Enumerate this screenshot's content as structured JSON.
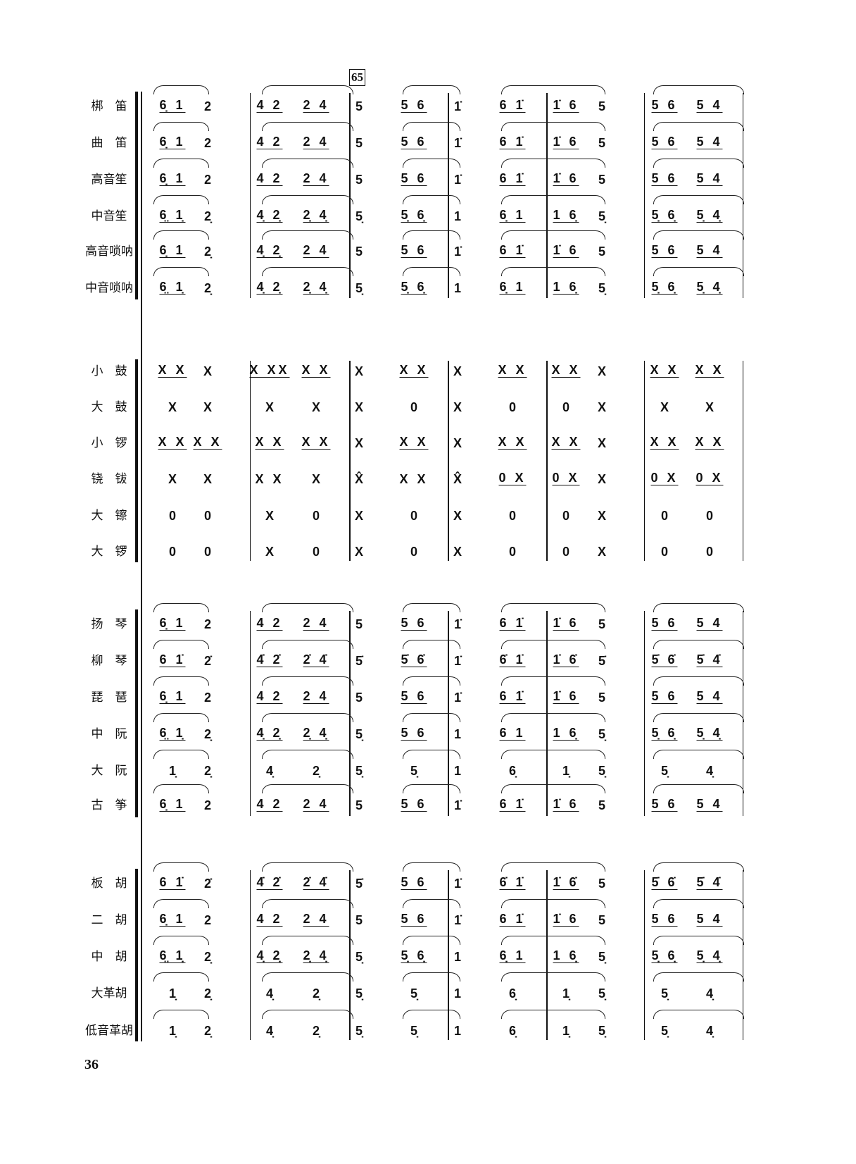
{
  "rehearsal_mark": "65",
  "page_number": "36",
  "groups": [
    {
      "name": "winds",
      "slurs": true,
      "rows": [
        {
          "label": "梆　笛",
          "notes": [
            "6̣ 1",
            "2",
            "4 2",
            "2 4",
            "5",
            "5 6",
            "1̇",
            "6 1̇",
            "1̇ 6",
            "5",
            "5 6",
            "5 4"
          ]
        },
        {
          "label": "曲　笛",
          "notes": [
            "6̣ 1",
            "2",
            "4 2",
            "2 4",
            "5",
            "5 6",
            "1̇",
            "6 1̇",
            "1̇ 6",
            "5",
            "5 6",
            "5 4"
          ]
        },
        {
          "label": "高音笙",
          "notes": [
            "6̣ 1",
            "2",
            "4 2",
            "2 4",
            "5",
            "5 6",
            "1̇",
            "6 1̇",
            "1̇ 6",
            "5",
            "5 6",
            "5 4"
          ]
        },
        {
          "label": "中音笙",
          "notes": [
            "6̤ 1̣",
            "2̣",
            "4̣ 2̣",
            "2̣ 4̣",
            "5̣",
            "5̣ 6̣",
            "1",
            "6̣ 1",
            "1 6̣",
            "5̣",
            "5̣ 6̣",
            "5̣ 4̣"
          ]
        },
        {
          "label": "高音唢呐",
          "notes": [
            "6̣ 1",
            "2̣",
            "4̣ 2̣",
            "2 4",
            "5",
            "5 6",
            "1̇",
            "6 1̇",
            "1̇ 6",
            "5",
            "5 6",
            "5 4"
          ]
        },
        {
          "label": "中音唢呐",
          "notes": [
            "6̤ 1̣",
            "2̣",
            "4̣ 2̣",
            "2̣ 4̣",
            "5̣",
            "5̣ 6̣",
            "1",
            "6̣ 1",
            "1 6̣",
            "5̣",
            "5̣ 6̣",
            "5̣ 4̣"
          ]
        }
      ]
    },
    {
      "name": "percussion",
      "slurs": false,
      "rows": [
        {
          "label": "小　鼓",
          "notes": [
            "X X",
            "X",
            "X XX",
            "X X",
            "X",
            "X X",
            "X",
            "X X",
            "X X",
            "X",
            "X X",
            "X X"
          ]
        },
        {
          "label": "大　鼓",
          "notes": [
            "X",
            "X",
            "X",
            "X",
            "X",
            "0",
            "X",
            "0",
            "0",
            "X",
            "X",
            "X"
          ]
        },
        {
          "label": "小　锣",
          "notes": [
            "X X",
            "X X",
            "X X",
            "X X",
            "X",
            "X X",
            "X",
            "X X",
            "X X",
            "X",
            "X X",
            "X X"
          ]
        },
        {
          "label": "铙　钹",
          "notes": [
            "X",
            "X",
            "X X",
            "X",
            "X̂",
            "X X",
            "X̂",
            "0 X",
            "0 X",
            "X",
            "0 X",
            "0 X"
          ]
        },
        {
          "label": "大　镲",
          "notes": [
            "0",
            "0",
            "X",
            "0",
            "X",
            "0",
            "X",
            "0",
            "0",
            "X",
            "0",
            "0"
          ]
        },
        {
          "label": "大　锣",
          "notes": [
            "0",
            "0",
            "X",
            "0",
            "X",
            "0",
            "X",
            "0",
            "0",
            "X",
            "0",
            "0"
          ]
        }
      ]
    },
    {
      "name": "plucked",
      "slurs": true,
      "rows": [
        {
          "label": "扬　琴",
          "notes": [
            "6̣ 1",
            "2",
            "4 2",
            "2 4",
            "5",
            "5 6",
            "1̇",
            "6 1̇",
            "1̇ 6",
            "5",
            "5 6",
            "5 4"
          ]
        },
        {
          "label": "柳　琴",
          "notes": [
            "6 1̇",
            "2̇",
            "4̇ 2̇",
            "2̇ 4̇",
            "5̇",
            "5̇ 6̇",
            "1̇",
            "6̇ 1̇",
            "1̇ 6̇",
            "5̇",
            "5̇ 6̇",
            "5̇ 4̇"
          ]
        },
        {
          "label": "琵　琶",
          "notes": [
            "6̣ 1",
            "2",
            "4 2",
            "2 4",
            "5",
            "5 6",
            "1̇",
            "6 1̇",
            "1̇ 6",
            "5",
            "5 6",
            "5 4"
          ]
        },
        {
          "label": "中　阮",
          "notes": [
            "6̤ 1̣",
            "2̣",
            "4̣ 2̣",
            "2̣ 4̣",
            "5̣",
            "5 6",
            "1",
            "6 1",
            "1 6̣",
            "5̣",
            "5̣ 6̣",
            "5̣ 4̣"
          ]
        },
        {
          "label": "大　阮",
          "notes": [
            "1̣",
            "2̣",
            "4̣",
            "2̣",
            "5̣",
            "5̣",
            "1",
            "6̣",
            "1̣",
            "5̣",
            "5̣",
            "4̣"
          ]
        },
        {
          "label": "古　筝",
          "notes": [
            "6̣ 1",
            "2",
            "4 2",
            "2 4",
            "5",
            "5 6",
            "1̇",
            "6 1̇",
            "1̇ 6",
            "5",
            "5 6",
            "5 4"
          ]
        }
      ]
    },
    {
      "name": "bowed",
      "slurs": true,
      "rows": [
        {
          "label": "板　胡",
          "notes": [
            "6 1̇",
            "2̇",
            "4̇ 2̇",
            "2̇ 4̇",
            "5̇",
            "5 6",
            "1̇",
            "6̇ 1̇",
            "1̇ 6̇",
            "5",
            "5̇ 6̇",
            "5̇ 4̇"
          ]
        },
        {
          "label": "二　胡",
          "notes": [
            "6̣ 1",
            "2",
            "4 2",
            "2 4",
            "5",
            "5 6",
            "1̇",
            "6 1̇",
            "1̇ 6",
            "5",
            "5 6",
            "5 4"
          ]
        },
        {
          "label": "中　胡",
          "notes": [
            "6̤ 1̣",
            "2̣",
            "4̣ 2̣",
            "2̣ 4̣",
            "5̣",
            "5̣ 6̣",
            "1",
            "6̣ 1",
            "1 6̣",
            "5̣",
            "5̣ 6̣",
            "5̣ 4̣"
          ]
        },
        {
          "label": "大革胡",
          "notes": [
            "1̣",
            "2̣",
            "4̣",
            "2̣",
            "5̣",
            "5̣",
            "1",
            "6̣",
            "1̣",
            "5̣",
            "5̣",
            "4̣"
          ]
        },
        {
          "label": "低音革胡",
          "notes": [
            "1̣",
            "2̣",
            "4̣",
            "2̣",
            "5̣",
            "5̣",
            "1",
            "6̣",
            "1̣",
            "5̣",
            "5̣",
            "4̣"
          ]
        }
      ]
    }
  ]
}
